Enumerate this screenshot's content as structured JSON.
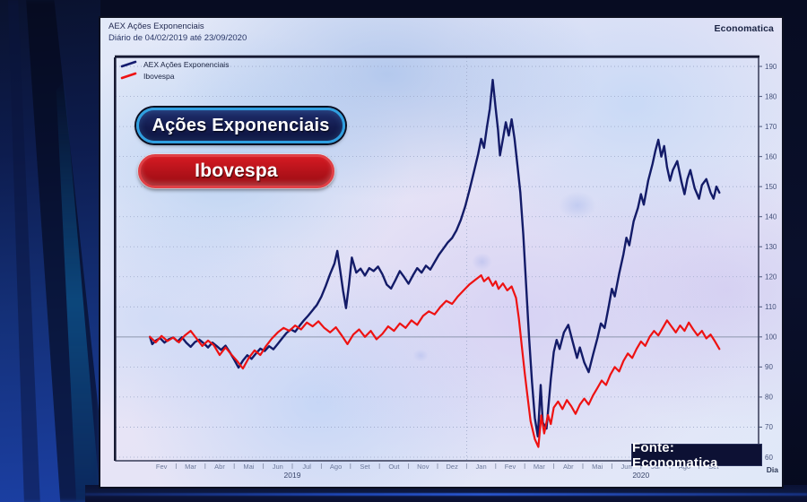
{
  "window": {
    "header_line1": "AEX Ações Exponenciais",
    "header_line2": "Diário de 04/02/2019 até 23/09/2020",
    "brand": "Economatica"
  },
  "legend": {
    "items": [
      {
        "label": "AEX Ações Exponenciais",
        "color": "#141c6e"
      },
      {
        "label": "Ibovespa",
        "color": "#ee1212"
      }
    ]
  },
  "buttons": {
    "primary": {
      "label": "Ações Exponenciais"
    },
    "secondary": {
      "label": "Ibovespa"
    }
  },
  "source_badge": {
    "label": "Fonte: Economatica"
  },
  "chart_data": {
    "type": "line",
    "title": "AEX Ações Exponenciais",
    "subtitle": "Diário de 04/02/2019 até 23/09/2020",
    "x_axis": {
      "label": "Dia",
      "month_labels": [
        "Fev",
        "Mar",
        "Abr",
        "Mai",
        "Jun",
        "Jul",
        "Ago",
        "Set",
        "Out",
        "Nov",
        "Dez",
        "Jan",
        "Fev",
        "Mar",
        "Abr",
        "Mai",
        "Jun",
        "Jul",
        "Ago",
        "Set"
      ],
      "year_labels": [
        {
          "text": "2019",
          "m": 5.0
        },
        {
          "text": "2020",
          "m": 17.0
        }
      ],
      "domain": [
        -1.08,
        21.05
      ],
      "grid_vertical_at": [
        11
      ]
    },
    "y_axis": {
      "ticks": [
        190,
        180,
        170,
        160,
        150,
        140,
        130,
        120,
        110,
        100,
        90,
        80,
        70,
        60
      ],
      "domain": [
        58.8,
        193
      ],
      "baseline": 100,
      "grid": "dotted"
    },
    "series": [
      {
        "name": "AEX Ações Exponenciais",
        "color": "#131b68",
        "width": 2.4,
        "points": [
          [
            0.1,
            100.0
          ],
          [
            0.18,
            97.6
          ],
          [
            0.3,
            98.8
          ],
          [
            0.45,
            99.6
          ],
          [
            0.6,
            98.1
          ],
          [
            0.75,
            99.2
          ],
          [
            0.9,
            99.8
          ],
          [
            1.05,
            98.5
          ],
          [
            1.2,
            99.9
          ],
          [
            1.35,
            98.1
          ],
          [
            1.5,
            96.7
          ],
          [
            1.65,
            98.3
          ],
          [
            1.8,
            99.1
          ],
          [
            1.95,
            97.9
          ],
          [
            2.1,
            96.5
          ],
          [
            2.25,
            98.1
          ],
          [
            2.4,
            96.9
          ],
          [
            2.55,
            95.7
          ],
          [
            2.7,
            97.1
          ],
          [
            2.85,
            94.9
          ],
          [
            3.0,
            92.4
          ],
          [
            3.15,
            89.8
          ],
          [
            3.3,
            92.1
          ],
          [
            3.45,
            93.9
          ],
          [
            3.6,
            92.7
          ],
          [
            3.75,
            94.5
          ],
          [
            3.9,
            96.1
          ],
          [
            4.05,
            95.3
          ],
          [
            4.2,
            96.9
          ],
          [
            4.35,
            95.9
          ],
          [
            4.5,
            97.7
          ],
          [
            4.65,
            99.5
          ],
          [
            4.8,
            101.3
          ],
          [
            4.95,
            102.5
          ],
          [
            5.1,
            101.7
          ],
          [
            5.25,
            103.7
          ],
          [
            5.4,
            105.5
          ],
          [
            5.55,
            107.1
          ],
          [
            5.7,
            108.9
          ],
          [
            5.85,
            110.7
          ],
          [
            6.0,
            113.4
          ],
          [
            6.15,
            116.9
          ],
          [
            6.3,
            120.9
          ],
          [
            6.45,
            124.4
          ],
          [
            6.55,
            128.6
          ],
          [
            6.65,
            122.1
          ],
          [
            6.75,
            115.2
          ],
          [
            6.85,
            109.6
          ],
          [
            6.95,
            117.4
          ],
          [
            7.05,
            126.4
          ],
          [
            7.2,
            121.4
          ],
          [
            7.35,
            122.7
          ],
          [
            7.5,
            120.4
          ],
          [
            7.65,
            122.9
          ],
          [
            7.8,
            121.9
          ],
          [
            7.95,
            123.4
          ],
          [
            8.1,
            120.9
          ],
          [
            8.25,
            117.4
          ],
          [
            8.4,
            116.1
          ],
          [
            8.55,
            118.9
          ],
          [
            8.7,
            121.9
          ],
          [
            8.85,
            119.9
          ],
          [
            9.0,
            117.7
          ],
          [
            9.15,
            120.4
          ],
          [
            9.3,
            122.9
          ],
          [
            9.45,
            121.4
          ],
          [
            9.6,
            123.7
          ],
          [
            9.75,
            122.4
          ],
          [
            9.9,
            124.9
          ],
          [
            10.05,
            127.4
          ],
          [
            10.2,
            129.4
          ],
          [
            10.35,
            131.4
          ],
          [
            10.5,
            132.9
          ],
          [
            10.65,
            135.4
          ],
          [
            10.8,
            138.9
          ],
          [
            10.95,
            143.4
          ],
          [
            11.1,
            148.9
          ],
          [
            11.25,
            154.9
          ],
          [
            11.4,
            160.9
          ],
          [
            11.5,
            165.9
          ],
          [
            11.6,
            162.9
          ],
          [
            11.7,
            169.9
          ],
          [
            11.8,
            175.9
          ],
          [
            11.9,
            185.5
          ],
          [
            12.0,
            176.0
          ],
          [
            12.08,
            168.9
          ],
          [
            12.15,
            160.4
          ],
          [
            12.25,
            165.9
          ],
          [
            12.35,
            171.4
          ],
          [
            12.45,
            167.0
          ],
          [
            12.55,
            172.4
          ],
          [
            12.65,
            166.0
          ],
          [
            12.75,
            157.0
          ],
          [
            12.85,
            148.0
          ],
          [
            12.95,
            134.0
          ],
          [
            13.05,
            117.0
          ],
          [
            13.15,
            100.0
          ],
          [
            13.25,
            85.0
          ],
          [
            13.35,
            73.0
          ],
          [
            13.45,
            66.9
          ],
          [
            13.55,
            84.0
          ],
          [
            13.62,
            71.5
          ],
          [
            13.75,
            69.5
          ],
          [
            13.9,
            86.0
          ],
          [
            14.0,
            95.0
          ],
          [
            14.1,
            99.0
          ],
          [
            14.2,
            96.0
          ],
          [
            14.35,
            101.5
          ],
          [
            14.5,
            104.0
          ],
          [
            14.65,
            98.5
          ],
          [
            14.8,
            93.0
          ],
          [
            14.9,
            96.5
          ],
          [
            15.05,
            91.5
          ],
          [
            15.2,
            88.3
          ],
          [
            15.35,
            94.0
          ],
          [
            15.5,
            99.5
          ],
          [
            15.62,
            104.5
          ],
          [
            15.75,
            103.0
          ],
          [
            15.9,
            110.5
          ],
          [
            16.0,
            116.0
          ],
          [
            16.1,
            113.5
          ],
          [
            16.25,
            121.0
          ],
          [
            16.4,
            127.5
          ],
          [
            16.5,
            133.0
          ],
          [
            16.6,
            130.5
          ],
          [
            16.75,
            138.5
          ],
          [
            16.9,
            143.0
          ],
          [
            17.0,
            147.5
          ],
          [
            17.1,
            144.0
          ],
          [
            17.25,
            152.0
          ],
          [
            17.4,
            157.5
          ],
          [
            17.5,
            162.0
          ],
          [
            17.6,
            165.6
          ],
          [
            17.7,
            160.0
          ],
          [
            17.8,
            163.5
          ],
          [
            17.9,
            156.5
          ],
          [
            18.0,
            152.0
          ],
          [
            18.1,
            155.5
          ],
          [
            18.25,
            158.5
          ],
          [
            18.4,
            151.5
          ],
          [
            18.5,
            147.5
          ],
          [
            18.6,
            152.5
          ],
          [
            18.7,
            155.5
          ],
          [
            18.85,
            149.5
          ],
          [
            19.0,
            146.0
          ],
          [
            19.1,
            150.5
          ],
          [
            19.25,
            152.5
          ],
          [
            19.4,
            148.0
          ],
          [
            19.5,
            146.0
          ],
          [
            19.6,
            150.0
          ],
          [
            19.7,
            148.0
          ]
        ]
      },
      {
        "name": "Ibovespa",
        "color": "#ee1212",
        "width": 2.2,
        "points": [
          [
            0.1,
            100.0
          ],
          [
            0.3,
            98.2
          ],
          [
            0.5,
            100.3
          ],
          [
            0.7,
            98.6
          ],
          [
            0.9,
            99.8
          ],
          [
            1.1,
            98.2
          ],
          [
            1.3,
            100.5
          ],
          [
            1.5,
            102.0
          ],
          [
            1.7,
            99.5
          ],
          [
            1.9,
            97.0
          ],
          [
            2.1,
            98.8
          ],
          [
            2.3,
            97.2
          ],
          [
            2.5,
            94.0
          ],
          [
            2.7,
            96.5
          ],
          [
            2.9,
            94.2
          ],
          [
            3.1,
            92.0
          ],
          [
            3.3,
            89.5
          ],
          [
            3.5,
            93.0
          ],
          [
            3.7,
            95.5
          ],
          [
            3.9,
            94.0
          ],
          [
            4.1,
            97.0
          ],
          [
            4.3,
            99.5
          ],
          [
            4.5,
            101.5
          ],
          [
            4.7,
            103.0
          ],
          [
            4.9,
            102.0
          ],
          [
            5.1,
            103.8
          ],
          [
            5.3,
            102.5
          ],
          [
            5.5,
            104.8
          ],
          [
            5.7,
            103.5
          ],
          [
            5.9,
            105.2
          ],
          [
            6.1,
            103.0
          ],
          [
            6.3,
            101.5
          ],
          [
            6.5,
            103.2
          ],
          [
            6.7,
            100.5
          ],
          [
            6.9,
            97.6
          ],
          [
            7.1,
            100.8
          ],
          [
            7.3,
            102.5
          ],
          [
            7.5,
            100.0
          ],
          [
            7.7,
            102.0
          ],
          [
            7.9,
            99.2
          ],
          [
            8.1,
            101.0
          ],
          [
            8.3,
            103.5
          ],
          [
            8.5,
            102.0
          ],
          [
            8.7,
            104.5
          ],
          [
            8.9,
            103.0
          ],
          [
            9.1,
            105.5
          ],
          [
            9.3,
            104.0
          ],
          [
            9.5,
            107.0
          ],
          [
            9.7,
            108.5
          ],
          [
            9.9,
            107.5
          ],
          [
            10.1,
            110.0
          ],
          [
            10.3,
            112.0
          ],
          [
            10.5,
            111.0
          ],
          [
            10.7,
            113.5
          ],
          [
            10.9,
            115.5
          ],
          [
            11.1,
            117.5
          ],
          [
            11.3,
            119.0
          ],
          [
            11.5,
            120.5
          ],
          [
            11.6,
            118.5
          ],
          [
            11.75,
            119.8
          ],
          [
            11.9,
            117.0
          ],
          [
            12.0,
            118.5
          ],
          [
            12.1,
            116.0
          ],
          [
            12.25,
            117.8
          ],
          [
            12.4,
            115.5
          ],
          [
            12.55,
            116.8
          ],
          [
            12.7,
            113.0
          ],
          [
            12.8,
            106.0
          ],
          [
            12.9,
            97.0
          ],
          [
            13.0,
            88.0
          ],
          [
            13.1,
            80.0
          ],
          [
            13.2,
            72.0
          ],
          [
            13.35,
            66.0
          ],
          [
            13.47,
            63.4
          ],
          [
            13.57,
            73.9
          ],
          [
            13.67,
            67.9
          ],
          [
            13.8,
            74.0
          ],
          [
            13.9,
            71.0
          ],
          [
            14.0,
            76.5
          ],
          [
            14.15,
            78.5
          ],
          [
            14.3,
            76.0
          ],
          [
            14.45,
            79.0
          ],
          [
            14.6,
            77.0
          ],
          [
            14.75,
            74.4
          ],
          [
            14.9,
            77.5
          ],
          [
            15.05,
            79.5
          ],
          [
            15.2,
            77.5
          ],
          [
            15.35,
            80.5
          ],
          [
            15.5,
            83.0
          ],
          [
            15.65,
            85.5
          ],
          [
            15.8,
            84.0
          ],
          [
            15.95,
            87.5
          ],
          [
            16.1,
            90.0
          ],
          [
            16.25,
            88.5
          ],
          [
            16.4,
            92.0
          ],
          [
            16.55,
            94.5
          ],
          [
            16.7,
            93.0
          ],
          [
            16.85,
            96.0
          ],
          [
            17.0,
            98.5
          ],
          [
            17.15,
            97.0
          ],
          [
            17.3,
            100.0
          ],
          [
            17.45,
            102.0
          ],
          [
            17.6,
            100.5
          ],
          [
            17.75,
            103.0
          ],
          [
            17.9,
            105.5
          ],
          [
            18.05,
            103.5
          ],
          [
            18.2,
            101.5
          ],
          [
            18.35,
            103.8
          ],
          [
            18.5,
            102.0
          ],
          [
            18.65,
            104.8
          ],
          [
            18.8,
            102.5
          ],
          [
            18.95,
            100.5
          ],
          [
            19.1,
            102.0
          ],
          [
            19.25,
            99.5
          ],
          [
            19.4,
            100.8
          ],
          [
            19.55,
            98.5
          ],
          [
            19.7,
            96.0
          ]
        ]
      }
    ]
  }
}
